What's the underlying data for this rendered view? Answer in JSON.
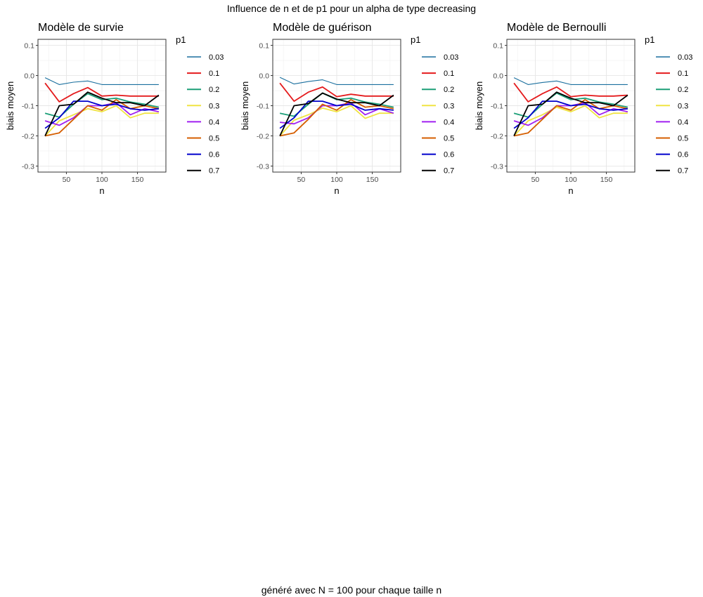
{
  "figure": {
    "title": "Influence de n et de p1 pour un alpha de type decreasing",
    "caption": "généré avec N = 100 pour chaque taille n"
  },
  "chart_data": [
    {
      "type": "line",
      "title": "Modèle de survie",
      "xlabel": "n",
      "ylabel": "biais moyen",
      "xlim": [
        10,
        190
      ],
      "ylim": [
        -0.32,
        0.12
      ],
      "xticks": [
        50,
        100,
        150
      ],
      "yticks": [
        0.1,
        0.0,
        -0.1,
        -0.2,
        -0.3
      ],
      "ytick_labels": [
        "0.1",
        "0.0",
        "-0.1",
        "-0.2",
        "-0.3"
      ],
      "grid": true,
      "legend": {
        "title": "p1",
        "position": "right"
      },
      "x": [
        20,
        40,
        60,
        80,
        100,
        120,
        140,
        160,
        180
      ],
      "series": [
        {
          "name": "0.03",
          "color": "#1a6f9e",
          "values": [
            -0.007,
            -0.03,
            -0.022,
            -0.018,
            -0.03,
            -0.03,
            -0.03,
            -0.03,
            -0.03
          ]
        },
        {
          "name": "0.1",
          "color": "#e41a1c",
          "values": [
            -0.025,
            -0.087,
            -0.06,
            -0.04,
            -0.068,
            -0.065,
            -0.068,
            -0.068,
            -0.068
          ]
        },
        {
          "name": "0.2",
          "color": "#1b9e77",
          "values": [
            -0.125,
            -0.138,
            -0.095,
            -0.06,
            -0.08,
            -0.075,
            -0.088,
            -0.095,
            -0.105
          ]
        },
        {
          "name": "0.3",
          "color": "#f0e442",
          "values": [
            -0.2,
            -0.15,
            -0.13,
            -0.11,
            -0.12,
            -0.1,
            -0.14,
            -0.125,
            -0.125
          ]
        },
        {
          "name": "0.4",
          "color": "#a020f0",
          "values": [
            -0.15,
            -0.165,
            -0.14,
            -0.1,
            -0.1,
            -0.09,
            -0.13,
            -0.11,
            -0.12
          ]
        },
        {
          "name": "0.5",
          "color": "#d55e00",
          "values": [
            -0.2,
            -0.19,
            -0.145,
            -0.1,
            -0.115,
            -0.08,
            -0.11,
            -0.1,
            -0.11
          ]
        },
        {
          "name": "0.6",
          "color": "#0000cc",
          "values": [
            -0.175,
            -0.14,
            -0.085,
            -0.085,
            -0.1,
            -0.095,
            -0.11,
            -0.115,
            -0.11
          ]
        },
        {
          "name": "0.7",
          "color": "#000000",
          "values": [
            -0.2,
            -0.1,
            -0.095,
            -0.055,
            -0.075,
            -0.09,
            -0.09,
            -0.1,
            -0.065
          ]
        }
      ]
    },
    {
      "type": "line",
      "title": "Modèle de guérison",
      "xlabel": "n",
      "ylabel": "biais moyen",
      "xlim": [
        10,
        190
      ],
      "ylim": [
        -0.32,
        0.12
      ],
      "xticks": [
        50,
        100,
        150
      ],
      "yticks": [
        0.1,
        0.0,
        -0.1,
        -0.2,
        -0.3
      ],
      "ytick_labels": [
        "0.1",
        "0.0",
        "-0.1",
        "-0.2",
        "-0.3"
      ],
      "grid": true,
      "legend": {
        "title": "p1",
        "position": "right"
      },
      "x": [
        20,
        40,
        60,
        80,
        100,
        120,
        140,
        160,
        180
      ],
      "series": [
        {
          "name": "0.03",
          "color": "#1a6f9e",
          "values": [
            -0.006,
            -0.028,
            -0.02,
            -0.014,
            -0.03,
            -0.03,
            -0.03,
            -0.03,
            -0.03
          ]
        },
        {
          "name": "0.1",
          "color": "#e41a1c",
          "values": [
            -0.025,
            -0.085,
            -0.055,
            -0.038,
            -0.07,
            -0.062,
            -0.068,
            -0.068,
            -0.068
          ]
        },
        {
          "name": "0.2",
          "color": "#1b9e77",
          "values": [
            -0.125,
            -0.135,
            -0.095,
            -0.058,
            -0.08,
            -0.075,
            -0.088,
            -0.095,
            -0.105
          ]
        },
        {
          "name": "0.3",
          "color": "#f0e442",
          "values": [
            -0.2,
            -0.148,
            -0.13,
            -0.108,
            -0.12,
            -0.1,
            -0.142,
            -0.125,
            -0.125
          ]
        },
        {
          "name": "0.4",
          "color": "#a020f0",
          "values": [
            -0.155,
            -0.16,
            -0.14,
            -0.1,
            -0.1,
            -0.09,
            -0.13,
            -0.11,
            -0.125
          ]
        },
        {
          "name": "0.5",
          "color": "#d55e00",
          "values": [
            -0.2,
            -0.19,
            -0.145,
            -0.095,
            -0.115,
            -0.08,
            -0.105,
            -0.1,
            -0.11
          ]
        },
        {
          "name": "0.6",
          "color": "#0000cc",
          "values": [
            -0.175,
            -0.14,
            -0.085,
            -0.085,
            -0.1,
            -0.095,
            -0.115,
            -0.11,
            -0.115
          ]
        },
        {
          "name": "0.7",
          "color": "#000000",
          "values": [
            -0.2,
            -0.1,
            -0.093,
            -0.058,
            -0.078,
            -0.09,
            -0.09,
            -0.1,
            -0.065
          ]
        }
      ]
    },
    {
      "type": "line",
      "title": "Modèle de Bernoulli",
      "xlabel": "n",
      "ylabel": "biais moyen",
      "xlim": [
        10,
        190
      ],
      "ylim": [
        -0.32,
        0.12
      ],
      "xticks": [
        50,
        100,
        150
      ],
      "yticks": [
        0.1,
        0.0,
        -0.1,
        -0.2,
        -0.3
      ],
      "ytick_labels": [
        "0.1",
        "0.0",
        "-0.1",
        "-0.2",
        "-0.3"
      ],
      "grid": true,
      "legend": {
        "title": "p1",
        "position": "right"
      },
      "x": [
        20,
        40,
        60,
        80,
        100,
        120,
        140,
        160,
        180
      ],
      "series": [
        {
          "name": "0.03",
          "color": "#1a6f9e",
          "values": [
            -0.007,
            -0.03,
            -0.023,
            -0.018,
            -0.03,
            -0.03,
            -0.03,
            -0.03,
            -0.03
          ]
        },
        {
          "name": "0.1",
          "color": "#e41a1c",
          "values": [
            -0.025,
            -0.087,
            -0.06,
            -0.038,
            -0.07,
            -0.065,
            -0.068,
            -0.068,
            -0.065
          ]
        },
        {
          "name": "0.2",
          "color": "#1b9e77",
          "values": [
            -0.125,
            -0.138,
            -0.095,
            -0.058,
            -0.08,
            -0.075,
            -0.088,
            -0.095,
            -0.105
          ]
        },
        {
          "name": "0.3",
          "color": "#f0e442",
          "values": [
            -0.2,
            -0.15,
            -0.13,
            -0.105,
            -0.12,
            -0.1,
            -0.14,
            -0.125,
            -0.125
          ]
        },
        {
          "name": "0.4",
          "color": "#a020f0",
          "values": [
            -0.15,
            -0.165,
            -0.14,
            -0.1,
            -0.1,
            -0.09,
            -0.13,
            -0.11,
            -0.12
          ]
        },
        {
          "name": "0.5",
          "color": "#d55e00",
          "values": [
            -0.2,
            -0.19,
            -0.145,
            -0.1,
            -0.115,
            -0.08,
            -0.11,
            -0.1,
            -0.11
          ]
        },
        {
          "name": "0.6",
          "color": "#0000cc",
          "values": [
            -0.175,
            -0.14,
            -0.085,
            -0.085,
            -0.1,
            -0.095,
            -0.11,
            -0.115,
            -0.11
          ]
        },
        {
          "name": "0.7",
          "color": "#000000",
          "values": [
            -0.2,
            -0.1,
            -0.095,
            -0.055,
            -0.075,
            -0.09,
            -0.09,
            -0.1,
            -0.065
          ]
        }
      ]
    }
  ]
}
